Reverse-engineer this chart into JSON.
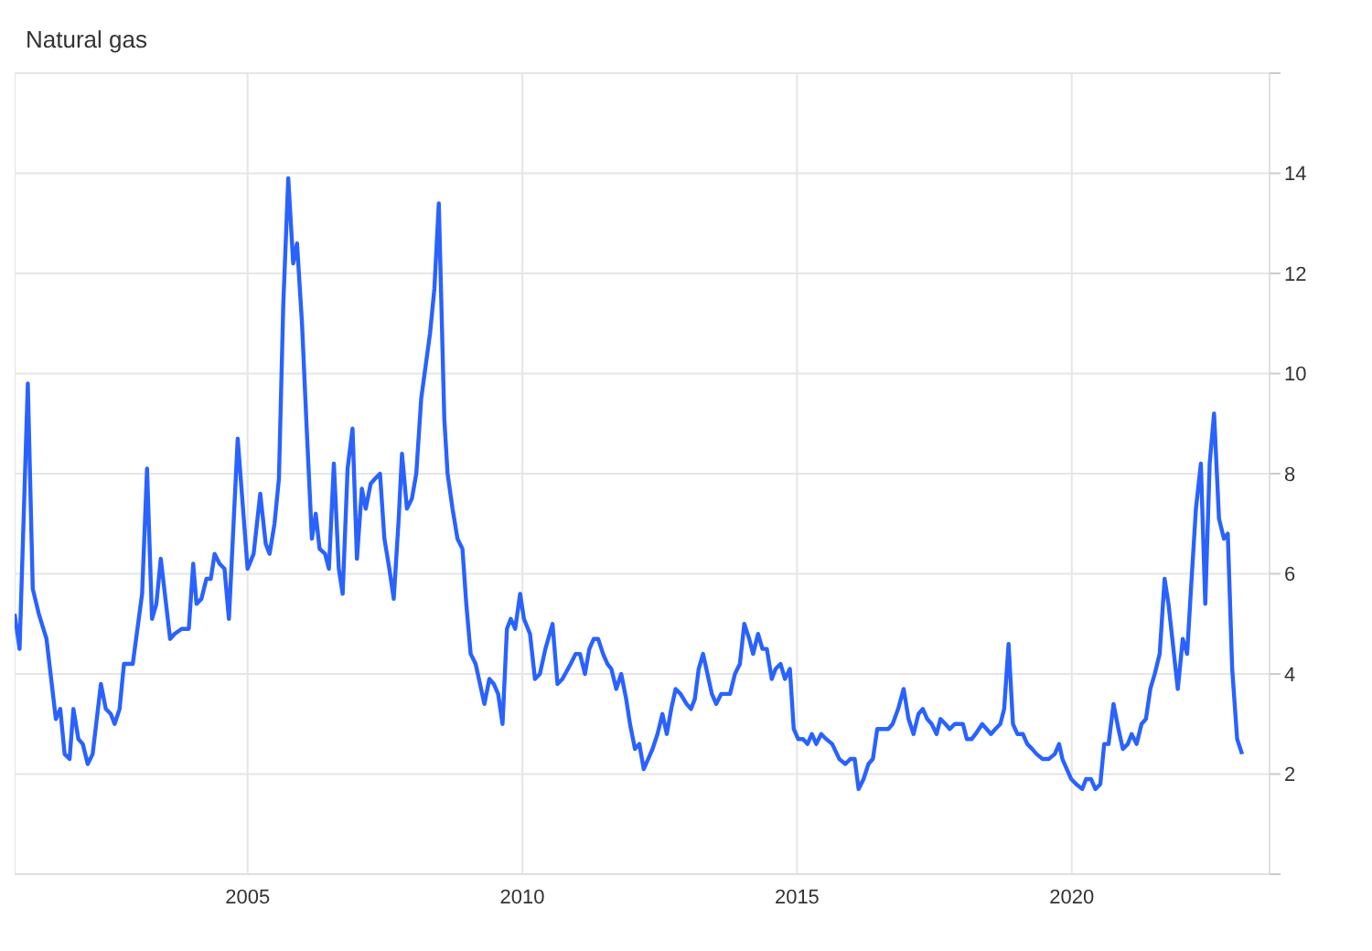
{
  "chart_data": {
    "type": "line",
    "title": "Natural gas",
    "x": [
      2000.76,
      2000.85,
      2001.0,
      2001.09,
      2001.2,
      2001.34,
      2001.51,
      2001.59,
      2001.67,
      2001.76,
      2001.83,
      2001.92,
      2002.0,
      2002.09,
      2002.18,
      2002.33,
      2002.42,
      2002.51,
      2002.58,
      2002.67,
      2002.75,
      2002.91,
      2003.08,
      2003.17,
      2003.26,
      2003.34,
      2003.42,
      2003.59,
      2003.67,
      2003.8,
      2003.93,
      2004.01,
      2004.07,
      2004.16,
      2004.25,
      2004.33,
      2004.4,
      2004.49,
      2004.58,
      2004.66,
      2004.82,
      2005.0,
      2005.11,
      2005.23,
      2005.33,
      2005.4,
      2005.49,
      2005.57,
      2005.65,
      2005.74,
      2005.83,
      2005.9,
      2005.99,
      2006.08,
      2006.17,
      2006.24,
      2006.31,
      2006.41,
      2006.48,
      2006.57,
      2006.66,
      2006.73,
      2006.82,
      2006.91,
      2006.99,
      2007.08,
      2007.15,
      2007.24,
      2007.32,
      2007.41,
      2007.49,
      2007.58,
      2007.66,
      2007.75,
      2007.81,
      2007.9,
      2007.99,
      2008.07,
      2008.16,
      2008.32,
      2008.4,
      2008.48,
      2008.58,
      2008.64,
      2008.73,
      2008.82,
      2008.91,
      2008.98,
      2009.06,
      2009.15,
      2009.31,
      2009.4,
      2009.48,
      2009.56,
      2009.64,
      2009.72,
      2009.79,
      2009.87,
      2009.96,
      2010.03,
      2010.14,
      2010.23,
      2010.32,
      2010.42,
      2010.55,
      2010.64,
      2010.73,
      2010.88,
      2010.97,
      2011.05,
      2011.14,
      2011.22,
      2011.3,
      2011.38,
      2011.47,
      2011.55,
      2011.62,
      2011.71,
      2011.8,
      2011.89,
      2011.96,
      2012.05,
      2012.13,
      2012.21,
      2012.29,
      2012.37,
      2012.46,
      2012.55,
      2012.63,
      2012.71,
      2012.79,
      2012.88,
      2012.99,
      2013.07,
      2013.14,
      2013.21,
      2013.29,
      2013.37,
      2013.45,
      2013.53,
      2013.62,
      2013.78,
      2013.87,
      2013.96,
      2014.04,
      2014.13,
      2014.2,
      2014.29,
      2014.37,
      2014.45,
      2014.54,
      2014.61,
      2014.7,
      2014.78,
      2014.87,
      2014.94,
      2015.02,
      2015.11,
      2015.19,
      2015.27,
      2015.35,
      2015.44,
      2015.53,
      2015.64,
      2015.77,
      2015.88,
      2015.97,
      2016.05,
      2016.12,
      2016.21,
      2016.3,
      2016.38,
      2016.46,
      2016.55,
      2016.66,
      2016.74,
      2016.84,
      2016.94,
      2017.03,
      2017.12,
      2017.21,
      2017.29,
      2017.37,
      2017.45,
      2017.54,
      2017.61,
      2017.7,
      2017.78,
      2017.87,
      2017.95,
      2018.02,
      2018.09,
      2018.18,
      2018.25,
      2018.37,
      2018.45,
      2018.53,
      2018.61,
      2018.7,
      2018.77,
      2018.85,
      2018.93,
      2019.01,
      2019.11,
      2019.19,
      2019.28,
      2019.36,
      2019.47,
      2019.58,
      2019.69,
      2019.77,
      2019.83,
      2019.91,
      2019.99,
      2020.08,
      2020.19,
      2020.26,
      2020.35,
      2020.43,
      2020.52,
      2020.59,
      2020.67,
      2020.76,
      2020.85,
      2020.93,
      2021.02,
      2021.09,
      2021.18,
      2021.27,
      2021.35,
      2021.43,
      2021.51,
      2021.6,
      2021.69,
      2021.76,
      2021.93,
      2022.02,
      2022.1,
      2022.17,
      2022.26,
      2022.35,
      2022.43,
      2022.51,
      2022.59,
      2022.68,
      2022.77,
      2022.84,
      2022.92,
      2023.01,
      2023.1
    ],
    "series": [
      {
        "color": "#2962ff",
        "values": [
          5.2,
          4.5,
          9.8,
          5.7,
          5.2,
          4.7,
          3.1,
          3.3,
          2.4,
          2.3,
          3.3,
          2.7,
          2.6,
          2.2,
          2.4,
          3.8,
          3.3,
          3.2,
          3.0,
          3.3,
          4.2,
          4.2,
          5.6,
          8.1,
          5.1,
          5.4,
          6.3,
          4.7,
          4.8,
          4.9,
          4.9,
          6.2,
          5.4,
          5.5,
          5.9,
          5.9,
          6.4,
          6.2,
          6.1,
          5.1,
          8.7,
          6.1,
          6.4,
          7.6,
          6.6,
          6.4,
          7.0,
          7.9,
          11.4,
          13.9,
          12.2,
          12.6,
          11.0,
          8.8,
          6.7,
          7.2,
          6.5,
          6.4,
          6.1,
          8.2,
          6.1,
          5.6,
          8.1,
          8.9,
          6.3,
          7.7,
          7.3,
          7.8,
          7.9,
          8.0,
          6.7,
          6.1,
          5.5,
          7.1,
          8.4,
          7.3,
          7.5,
          8.0,
          9.5,
          10.8,
          11.7,
          13.4,
          9.1,
          8.0,
          7.3,
          6.7,
          6.5,
          5.4,
          4.4,
          4.2,
          3.4,
          3.9,
          3.8,
          3.6,
          3.0,
          4.9,
          5.1,
          4.9,
          5.6,
          5.1,
          4.8,
          3.9,
          4.0,
          4.5,
          5.0,
          3.8,
          3.9,
          4.2,
          4.4,
          4.4,
          4.0,
          4.5,
          4.7,
          4.7,
          4.4,
          4.2,
          4.1,
          3.7,
          4.0,
          3.5,
          3.0,
          2.5,
          2.6,
          2.1,
          2.3,
          2.5,
          2.8,
          3.2,
          2.8,
          3.3,
          3.7,
          3.6,
          3.4,
          3.3,
          3.5,
          4.1,
          4.4,
          4.0,
          3.6,
          3.4,
          3.6,
          3.6,
          4.0,
          4.2,
          5.0,
          4.7,
          4.4,
          4.8,
          4.5,
          4.5,
          3.9,
          4.1,
          4.2,
          3.9,
          4.1,
          2.9,
          2.7,
          2.7,
          2.6,
          2.8,
          2.6,
          2.8,
          2.7,
          2.6,
          2.3,
          2.2,
          2.3,
          2.3,
          1.7,
          1.9,
          2.2,
          2.3,
          2.9,
          2.9,
          2.9,
          3.0,
          3.3,
          3.7,
          3.1,
          2.8,
          3.2,
          3.3,
          3.1,
          3.0,
          2.8,
          3.1,
          3.0,
          2.9,
          3.0,
          3.0,
          3.0,
          2.7,
          2.7,
          2.8,
          3.0,
          2.9,
          2.8,
          2.9,
          3.0,
          3.3,
          4.6,
          3.0,
          2.8,
          2.8,
          2.6,
          2.5,
          2.4,
          2.3,
          2.3,
          2.4,
          2.6,
          2.3,
          2.1,
          1.9,
          1.8,
          1.7,
          1.9,
          1.9,
          1.7,
          1.8,
          2.6,
          2.6,
          3.4,
          2.9,
          2.5,
          2.6,
          2.8,
          2.6,
          3.0,
          3.1,
          3.7,
          4.0,
          4.4,
          5.9,
          5.4,
          3.7,
          4.7,
          4.4,
          5.7,
          7.3,
          8.2,
          5.4,
          8.2,
          9.2,
          7.1,
          6.7,
          6.8,
          4.1,
          2.7,
          2.4
        ]
      }
    ],
    "xlim": [
      2000.76,
      2023.6
    ],
    "xticks": [
      2005,
      2010,
      2015,
      2020
    ],
    "ylim": [
      0,
      16
    ],
    "yticks": [
      {
        "value": 0,
        "label": null
      },
      2,
      4,
      6,
      8,
      10,
      12,
      14,
      {
        "value": 16,
        "label": null
      }
    ],
    "grid": true,
    "marker": "none",
    "line_style": "solid"
  }
}
